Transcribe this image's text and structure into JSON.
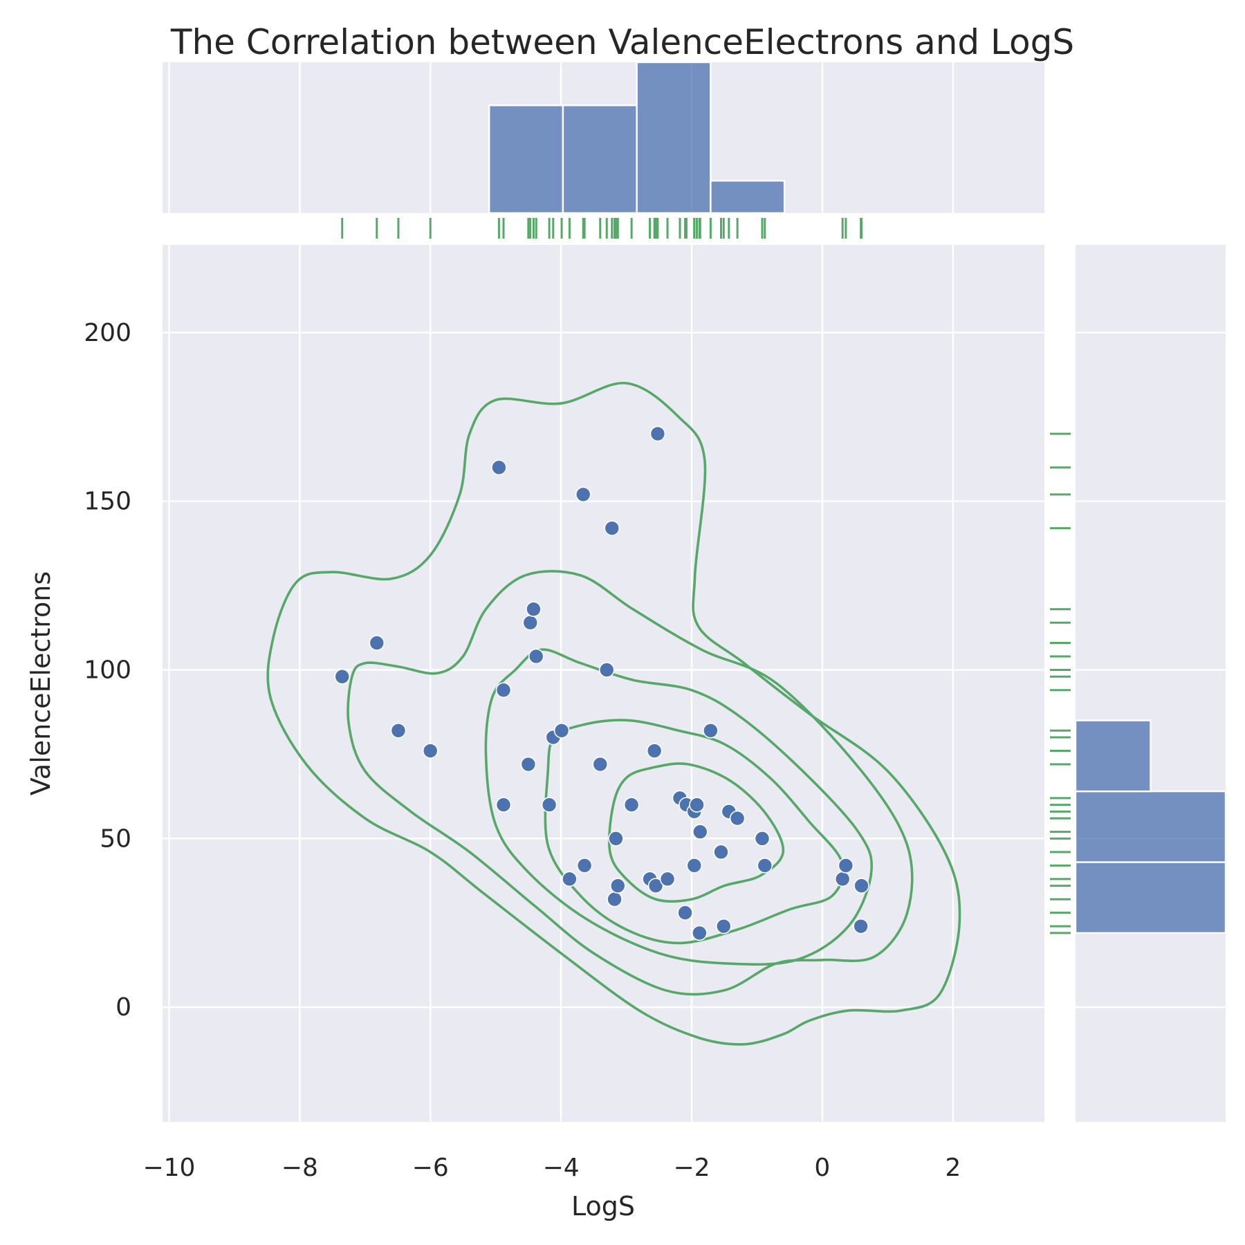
{
  "chart_data": {
    "type": "scatter",
    "title": "The Correlation between ValenceElectrons and LogS",
    "xlabel": "LogS",
    "ylabel": "ValenceElectrons",
    "xlim": [
      -10.1,
      3.4
    ],
    "ylim": [
      -34,
      226
    ],
    "xticks": [
      -10,
      -8,
      -6,
      -4,
      -2,
      0,
      2
    ],
    "xtick_labels": [
      "−10",
      "−8",
      "−6",
      "−4",
      "−2",
      "0",
      "2"
    ],
    "yticks": [
      0,
      50,
      100,
      150,
      200
    ],
    "ytick_labels": [
      "0",
      "50",
      "100",
      "150",
      "200"
    ],
    "grid": true,
    "colors": {
      "background": "#eaeaf2",
      "point": "#4c72b0",
      "bar": "#4c72b0",
      "kde": "#55a868",
      "rug": "#55a868",
      "text": "#262626"
    },
    "points": [
      {
        "x": -7.35,
        "y": 98
      },
      {
        "x": -6.82,
        "y": 108
      },
      {
        "x": -6.49,
        "y": 82
      },
      {
        "x": -6.0,
        "y": 76
      },
      {
        "x": -4.95,
        "y": 160
      },
      {
        "x": -4.88,
        "y": 94
      },
      {
        "x": -4.88,
        "y": 60
      },
      {
        "x": -4.5,
        "y": 72
      },
      {
        "x": -4.47,
        "y": 114
      },
      {
        "x": -4.42,
        "y": 118
      },
      {
        "x": -4.38,
        "y": 104
      },
      {
        "x": -4.18,
        "y": 60
      },
      {
        "x": -4.12,
        "y": 80
      },
      {
        "x": -3.99,
        "y": 82
      },
      {
        "x": -3.87,
        "y": 38
      },
      {
        "x": -3.66,
        "y": 152
      },
      {
        "x": -3.64,
        "y": 42
      },
      {
        "x": -3.4,
        "y": 72
      },
      {
        "x": -3.3,
        "y": 100
      },
      {
        "x": -3.22,
        "y": 142
      },
      {
        "x": -3.18,
        "y": 32
      },
      {
        "x": -3.16,
        "y": 50
      },
      {
        "x": -3.13,
        "y": 36
      },
      {
        "x": -2.92,
        "y": 60
      },
      {
        "x": -2.64,
        "y": 38
      },
      {
        "x": -2.57,
        "y": 76
      },
      {
        "x": -2.55,
        "y": 36
      },
      {
        "x": -2.52,
        "y": 170
      },
      {
        "x": -2.37,
        "y": 38
      },
      {
        "x": -2.18,
        "y": 62
      },
      {
        "x": -2.1,
        "y": 28
      },
      {
        "x": -2.08,
        "y": 60
      },
      {
        "x": -1.96,
        "y": 58
      },
      {
        "x": -1.96,
        "y": 42
      },
      {
        "x": -1.92,
        "y": 60
      },
      {
        "x": -1.88,
        "y": 22
      },
      {
        "x": -1.87,
        "y": 52
      },
      {
        "x": -1.71,
        "y": 82
      },
      {
        "x": -1.55,
        "y": 46
      },
      {
        "x": -1.51,
        "y": 24
      },
      {
        "x": -1.43,
        "y": 58
      },
      {
        "x": -1.3,
        "y": 56
      },
      {
        "x": -0.92,
        "y": 50
      },
      {
        "x": -0.88,
        "y": 42
      },
      {
        "x": 0.31,
        "y": 38
      },
      {
        "x": 0.36,
        "y": 42
      },
      {
        "x": 0.6,
        "y": 36
      },
      {
        "x": 0.59,
        "y": 24
      }
    ],
    "x_histogram": {
      "bin_edges": [
        -5.1,
        -3.97,
        -2.84,
        -1.71,
        -0.58
      ],
      "counts": [
        10,
        10,
        14,
        3
      ]
    },
    "y_histogram": {
      "bin_edges": [
        22,
        43,
        64,
        85
      ],
      "counts": [
        12,
        12,
        6
      ]
    },
    "kde_contours": [
      [
        [
          -8.4,
          110
        ],
        [
          -8.05,
          126
        ],
        [
          -7.5,
          129
        ],
        [
          -6.6,
          127
        ],
        [
          -6.0,
          134
        ],
        [
          -5.55,
          152
        ],
        [
          -5.4,
          170
        ],
        [
          -5.0,
          180
        ],
        [
          -4.0,
          179
        ],
        [
          -3.0,
          185
        ],
        [
          -2.2,
          175
        ],
        [
          -1.8,
          162
        ],
        [
          -1.95,
          128
        ],
        [
          -1.9,
          113
        ],
        [
          -1.2,
          102
        ],
        [
          -0.2,
          87
        ],
        [
          1.0,
          70
        ],
        [
          1.9,
          45
        ],
        [
          2.1,
          25
        ],
        [
          1.8,
          4
        ],
        [
          1.2,
          -1
        ],
        [
          0.4,
          -1
        ],
        [
          -0.2,
          -4
        ],
        [
          -0.6,
          -8
        ],
        [
          -1.2,
          -11
        ],
        [
          -1.9,
          -9
        ],
        [
          -2.8,
          -1
        ],
        [
          -4.0,
          16
        ],
        [
          -5.2,
          34
        ],
        [
          -6.0,
          46
        ],
        [
          -7.0,
          56
        ],
        [
          -7.9,
          72
        ],
        [
          -8.45,
          92
        ],
        [
          -8.4,
          110
        ]
      ],
      [
        [
          -7.2,
          98
        ],
        [
          -7.0,
          102
        ],
        [
          -6.5,
          101
        ],
        [
          -5.9,
          99
        ],
        [
          -5.5,
          104
        ],
        [
          -5.15,
          118
        ],
        [
          -4.55,
          128
        ],
        [
          -3.7,
          128
        ],
        [
          -2.9,
          118
        ],
        [
          -1.85,
          106
        ],
        [
          -0.7,
          96
        ],
        [
          0.6,
          70
        ],
        [
          1.3,
          48
        ],
        [
          1.3,
          28
        ],
        [
          0.8,
          15
        ],
        [
          0.0,
          14
        ],
        [
          -0.7,
          13
        ],
        [
          -1.5,
          5
        ],
        [
          -2.4,
          5
        ],
        [
          -3.5,
          16
        ],
        [
          -4.4,
          30
        ],
        [
          -5.4,
          46
        ],
        [
          -6.3,
          58
        ],
        [
          -7.0,
          70
        ],
        [
          -7.25,
          84
        ],
        [
          -7.2,
          98
        ]
      ],
      [
        [
          -5.15,
          75
        ],
        [
          -5.05,
          92
        ],
        [
          -4.7,
          100
        ],
        [
          -4.3,
          106
        ],
        [
          -3.7,
          102
        ],
        [
          -2.9,
          97
        ],
        [
          -2.0,
          94
        ],
        [
          -1.25,
          86
        ],
        [
          -0.3,
          70
        ],
        [
          0.55,
          52
        ],
        [
          0.75,
          40
        ],
        [
          0.4,
          24
        ],
        [
          -0.4,
          14
        ],
        [
          -1.5,
          13
        ],
        [
          -2.5,
          16
        ],
        [
          -3.6,
          26
        ],
        [
          -4.5,
          40
        ],
        [
          -5.0,
          54
        ],
        [
          -5.15,
          75
        ]
      ],
      [
        [
          -4.2,
          70
        ],
        [
          -4.1,
          80
        ],
        [
          -3.6,
          84
        ],
        [
          -2.95,
          85
        ],
        [
          -2.2,
          82
        ],
        [
          -1.5,
          78
        ],
        [
          -0.8,
          68
        ],
        [
          -0.2,
          55
        ],
        [
          0.3,
          43
        ],
        [
          0.15,
          33
        ],
        [
          -0.5,
          29
        ],
        [
          -1.3,
          23
        ],
        [
          -2.2,
          19
        ],
        [
          -3.0,
          23
        ],
        [
          -3.7,
          33
        ],
        [
          -4.2,
          48
        ],
        [
          -4.2,
          70
        ]
      ],
      [
        [
          -3.2,
          60
        ],
        [
          -3.0,
          68
        ],
        [
          -2.6,
          71
        ],
        [
          -2.05,
          72
        ],
        [
          -1.4,
          67
        ],
        [
          -0.85,
          57
        ],
        [
          -0.6,
          46
        ],
        [
          -0.95,
          39
        ],
        [
          -1.5,
          36
        ],
        [
          -2.0,
          32
        ],
        [
          -2.55,
          32
        ],
        [
          -3.0,
          38
        ],
        [
          -3.25,
          46
        ],
        [
          -3.2,
          60
        ]
      ]
    ],
    "rug_x": [
      -7.35,
      -6.82,
      -6.49,
      -6.0,
      -4.95,
      -4.88,
      -4.88,
      -4.5,
      -4.47,
      -4.42,
      -4.38,
      -4.18,
      -4.12,
      -3.99,
      -3.87,
      -3.66,
      -3.64,
      -3.4,
      -3.3,
      -3.22,
      -3.18,
      -3.16,
      -3.13,
      -2.92,
      -2.64,
      -2.57,
      -2.55,
      -2.52,
      -2.37,
      -2.18,
      -2.1,
      -2.08,
      -1.96,
      -1.96,
      -1.92,
      -1.88,
      -1.87,
      -1.71,
      -1.55,
      -1.51,
      -1.43,
      -1.3,
      -0.92,
      -0.88,
      0.31,
      0.36,
      0.6,
      0.59
    ],
    "rug_y": [
      22,
      24,
      28,
      32,
      36,
      38,
      42,
      46,
      50,
      52,
      56,
      58,
      60,
      62,
      72,
      76,
      80,
      82,
      94,
      98,
      100,
      104,
      108,
      114,
      118,
      142,
      152,
      160,
      170
    ]
  }
}
